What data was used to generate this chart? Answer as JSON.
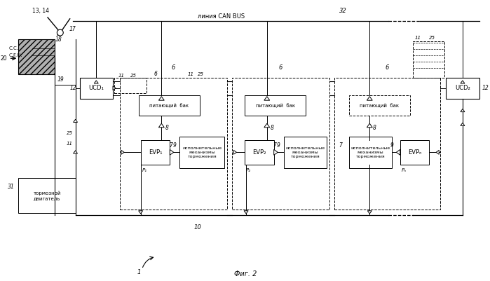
{
  "title": "Фиг. 2",
  "bg_color": "#ffffff",
  "lc": "#000000",
  "label_13_14": "13, 14",
  "label_17": "17",
  "label_cc": "C.C.",
  "label_cfu": "C.F.U.",
  "label_18": "18",
  "label_20": "20",
  "label_19": "19",
  "label_12": "12",
  "label_25": "25",
  "label_11": "11",
  "label_6": "6",
  "label_31": "31",
  "label_32": "32",
  "label_can_bus": "линия CAN BUS",
  "label_10": "10",
  "label_1": "1",
  "label_ucd1": "UCD₁",
  "label_ucd2": "UCD₂",
  "label_evp1": "EVP₁",
  "label_evp2": "EVP₂",
  "label_evp3": "EVPₙ",
  "label_p1": "P₁",
  "label_p2": "P₂",
  "label_pn": "Pₙ",
  "label_tank": "питающий  бак",
  "label_bm": "исполнительные\nмеханизмы\nторможения",
  "label_be": "тормозной\nдвигатель"
}
